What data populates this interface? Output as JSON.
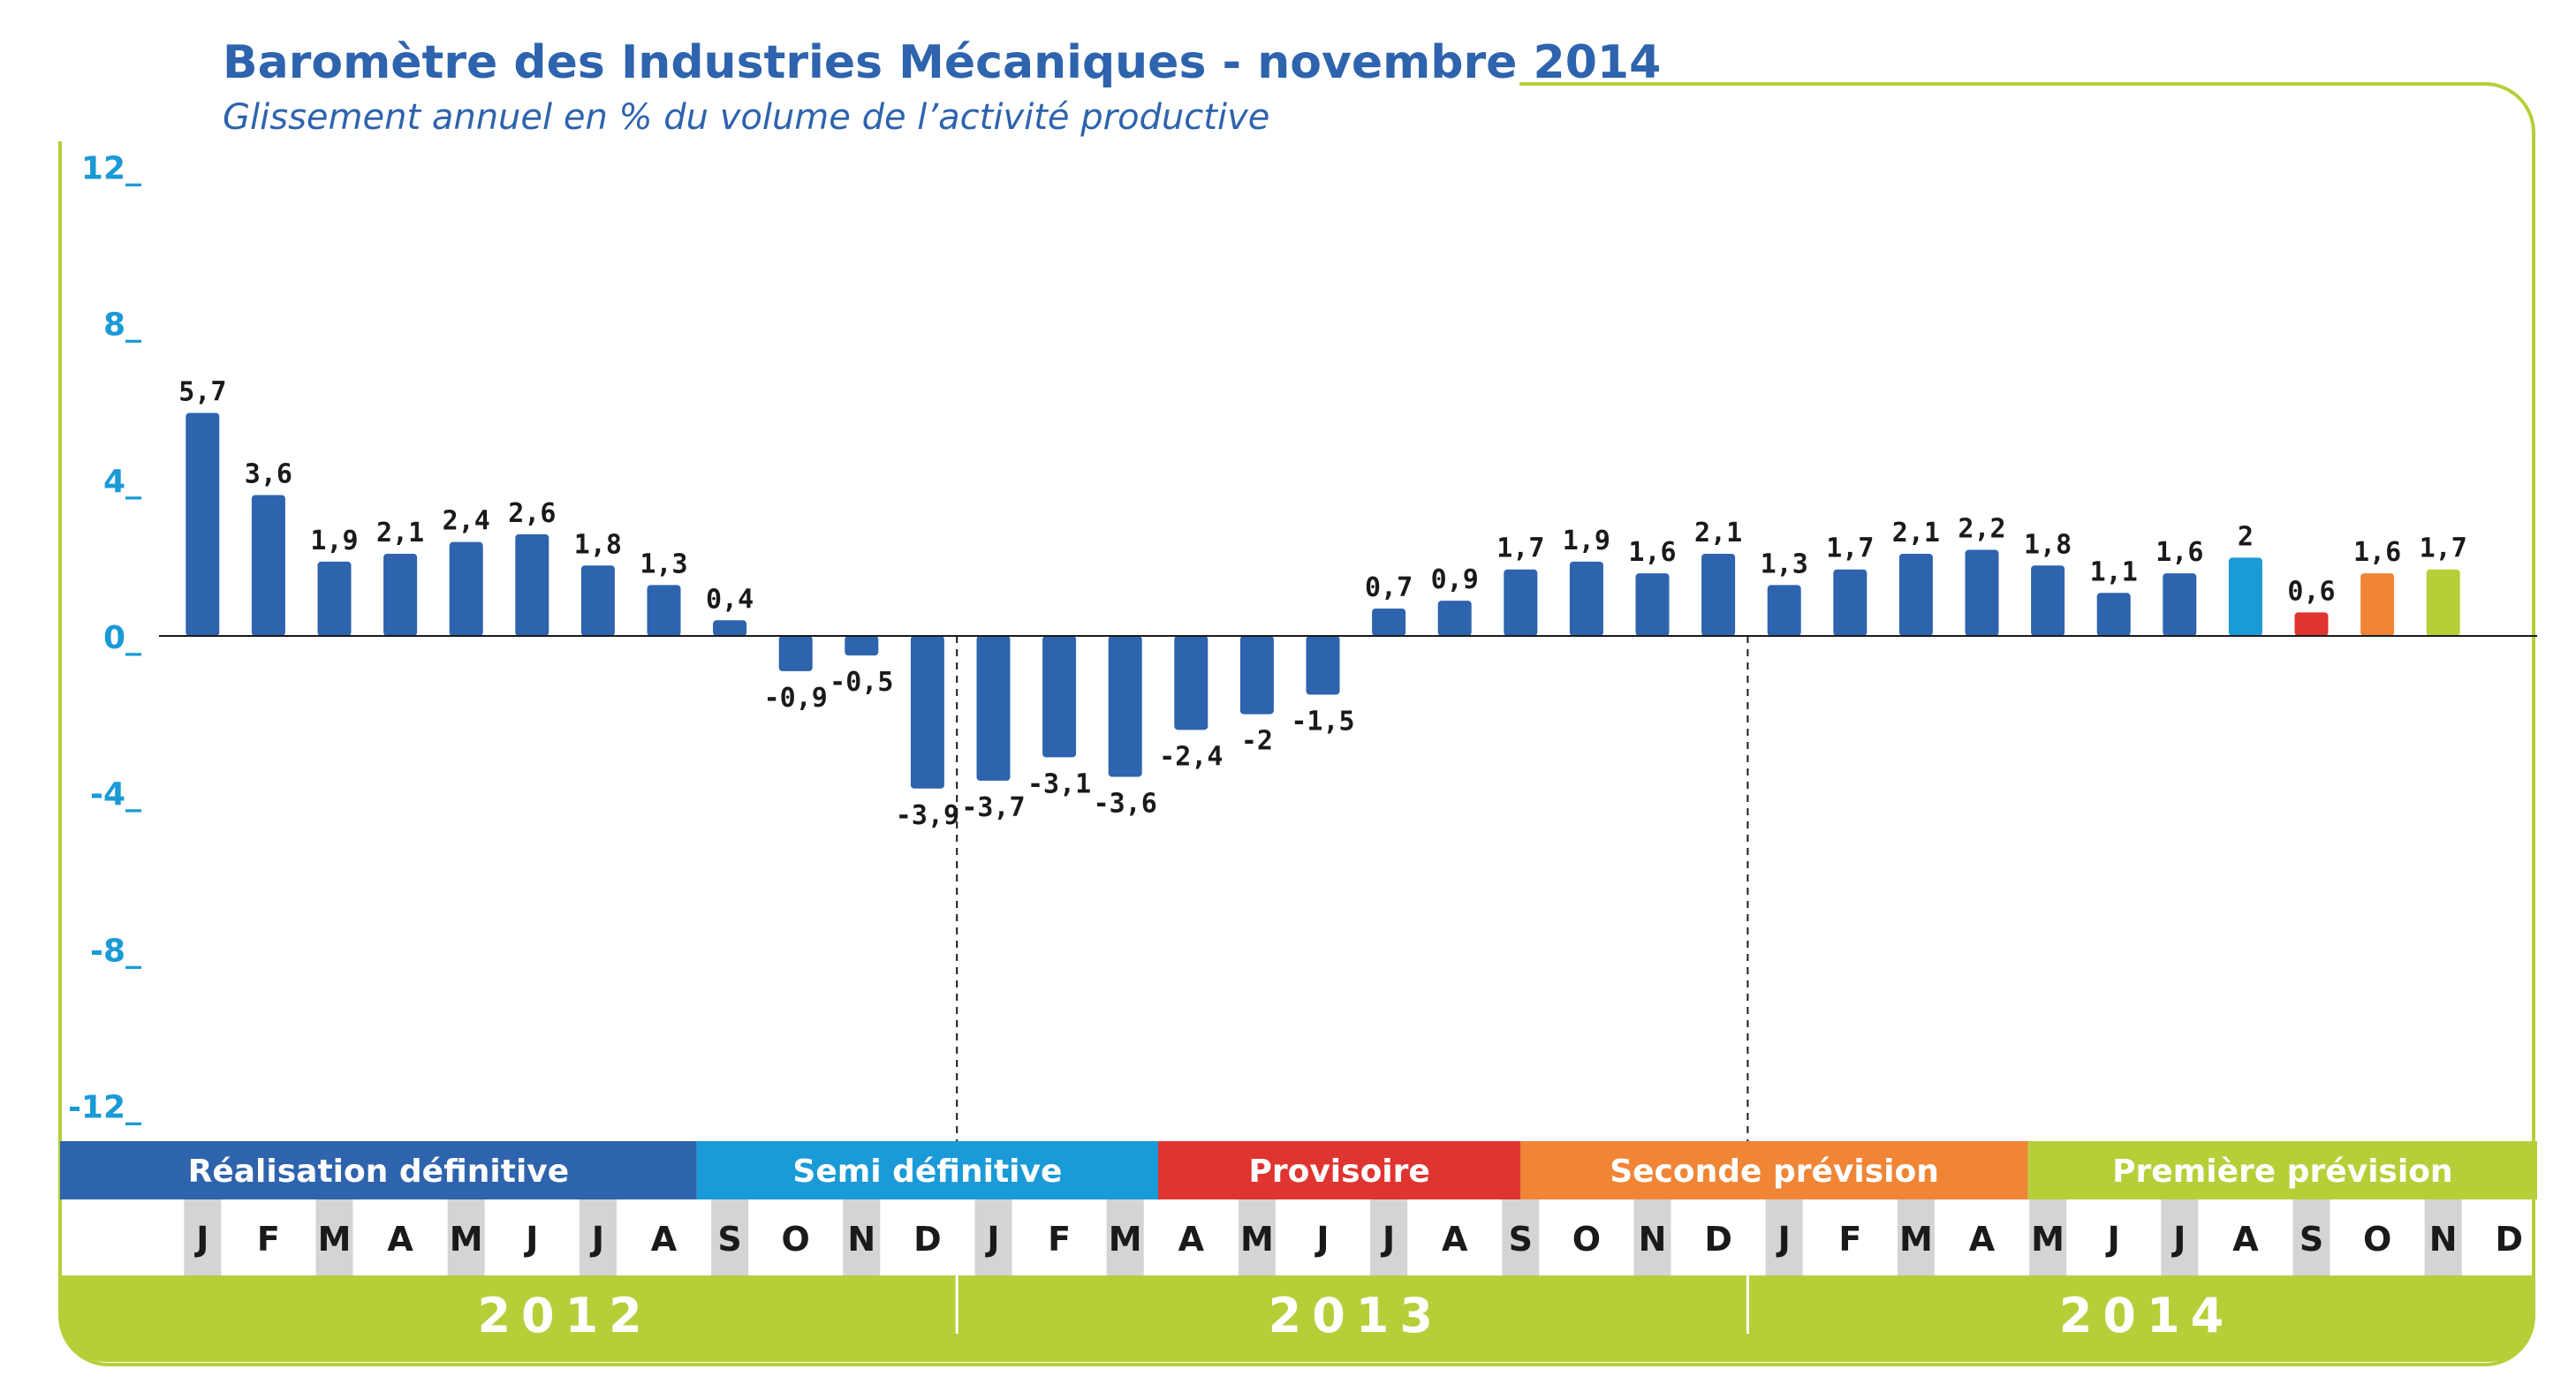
{
  "title": "Baromètre des Industries Mécaniques - novembre 2014",
  "subtitle": "Glissement annuel en % du volume de l’activité productive",
  "colors": {
    "frame": "#b5cf39",
    "bar": "#2e63ad",
    "accent_text": "#1a9ad6",
    "month_shade": "#d4d4d4"
  },
  "chart_data": {
    "type": "bar",
    "ylim": [
      -12,
      12
    ],
    "yticks": [
      {
        "value": 12,
        "label": "12_"
      },
      {
        "value": 8,
        "label": "8_"
      },
      {
        "value": 4,
        "label": "4_"
      },
      {
        "value": 0,
        "label": "0_"
      },
      {
        "value": -4,
        "label": "-4_"
      },
      {
        "value": -8,
        "label": "-8_"
      },
      {
        "value": -12,
        "label": "-12_"
      }
    ],
    "categories": [
      "J",
      "F",
      "M",
      "A",
      "M",
      "J",
      "J",
      "A",
      "S",
      "O",
      "N",
      "D",
      "J",
      "F",
      "M",
      "A",
      "M",
      "J",
      "J",
      "A",
      "S",
      "O",
      "N",
      "D",
      "J",
      "F",
      "M",
      "A",
      "M",
      "J",
      "J",
      "A",
      "S",
      "O",
      "N",
      "D"
    ],
    "values": [
      5.7,
      3.6,
      1.9,
      2.1,
      2.4,
      2.6,
      1.8,
      1.3,
      0.4,
      -0.9,
      -0.5,
      -3.9,
      -3.7,
      -3.1,
      -3.6,
      -2.4,
      -2,
      -1.5,
      0.7,
      0.9,
      1.7,
      1.9,
      1.6,
      2.1,
      1.3,
      1.7,
      2.1,
      2.2,
      1.8,
      1.1,
      1.6,
      2,
      0.6,
      1.6,
      1.7,
      null
    ],
    "labels": [
      "5,7",
      "3,6",
      "1,9",
      "2,1",
      "2,4",
      "2,6",
      "1,8",
      "1,3",
      "0,4",
      "-0,9",
      "-0,5",
      "-3,9",
      "-3,7",
      "-3,1",
      "-3,6",
      "-2,4",
      "-2",
      "-1,5",
      "0,7",
      "0,9",
      "1,7",
      "1,9",
      "1,6",
      "2,1",
      "1,3",
      "1,7",
      "2,1",
      "2,2",
      "1,8",
      "1,1",
      "1,6",
      "2",
      "0,6",
      "1,6",
      "1,7",
      ""
    ],
    "bar_colors": [
      "#2e63ad",
      "#2e63ad",
      "#2e63ad",
      "#2e63ad",
      "#2e63ad",
      "#2e63ad",
      "#2e63ad",
      "#2e63ad",
      "#2e63ad",
      "#2e63ad",
      "#2e63ad",
      "#2e63ad",
      "#2e63ad",
      "#2e63ad",
      "#2e63ad",
      "#2e63ad",
      "#2e63ad",
      "#2e63ad",
      "#2e63ad",
      "#2e63ad",
      "#2e63ad",
      "#2e63ad",
      "#2e63ad",
      "#2e63ad",
      "#2e63ad",
      "#2e63ad",
      "#2e63ad",
      "#2e63ad",
      "#2e63ad",
      "#2e63ad",
      "#2e63ad",
      "#1a9ad6",
      "#e03431",
      "#f08536",
      "#b5cf39",
      ""
    ],
    "shaded_months": [
      0,
      2,
      4,
      6,
      8,
      10,
      12,
      14,
      16,
      18,
      20,
      22,
      24,
      26,
      28,
      30,
      32,
      34
    ],
    "phases": [
      {
        "label": "Réalisation définitive",
        "color": "#2e63ad",
        "start": 0,
        "end": 8
      },
      {
        "label": "Semi définitive",
        "color": "#1a9ad6",
        "start": 8,
        "end": 15
      },
      {
        "label": "Provisoire",
        "color": "#e03431",
        "start": 15,
        "end": 20.5
      },
      {
        "label": "Seconde prévision",
        "color": "#f08536",
        "start": 20.5,
        "end": 28.2
      },
      {
        "label": "Première prévision",
        "color": "#b5cf39",
        "start": 28.2,
        "end": 37
      }
    ],
    "years": [
      {
        "label": "2012",
        "start": 0,
        "end": 12
      },
      {
        "label": "2013",
        "start": 12,
        "end": 24
      },
      {
        "label": "2014",
        "start": 24,
        "end": 36
      }
    ]
  }
}
